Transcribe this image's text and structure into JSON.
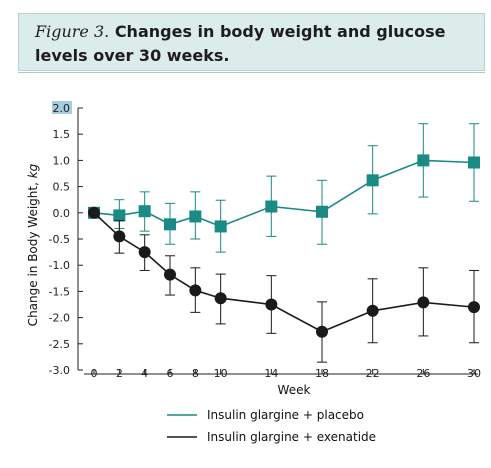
{
  "figure": {
    "label": "Figure 3.",
    "title": "Changes in body weight and glucose levels over 30 weeks."
  },
  "chart_data": {
    "type": "line",
    "xlabel": "Week",
    "ylabel": "Change in Body Weight, kg",
    "ylim": [
      -3.0,
      2.0
    ],
    "x": [
      0,
      2,
      4,
      6,
      8,
      10,
      14,
      18,
      22,
      26,
      30
    ],
    "y_ticks": [
      "2.0",
      "1.5",
      "1.0",
      "0.5",
      "0.0",
      "-0.5",
      "-1.0",
      "-1.5",
      "-2.0",
      "-2.5",
      "-3.0"
    ],
    "y_tick_values": [
      2.0,
      1.5,
      1.0,
      0.5,
      0.0,
      -0.5,
      -1.0,
      -1.5,
      -2.0,
      -2.5,
      -3.0
    ],
    "x_ticks": [
      "0",
      "2",
      "4",
      "6",
      "8",
      "10",
      "14",
      "18",
      "22",
      "26",
      "30"
    ],
    "highlighted_tick": "2.0",
    "series": [
      {
        "name": "Insulin glargine + placebo",
        "color": "#1a8a84",
        "marker": "square",
        "values": [
          0.0,
          -0.05,
          0.03,
          -0.22,
          -0.07,
          -0.26,
          0.12,
          0.02,
          0.62,
          1.0,
          0.96
        ],
        "error_low": [
          -0.05,
          -0.3,
          -0.35,
          -0.6,
          -0.5,
          -0.75,
          -0.45,
          -0.6,
          -0.02,
          0.3,
          0.22
        ],
        "error_high": [
          0.05,
          0.25,
          0.4,
          0.18,
          0.4,
          0.24,
          0.7,
          0.62,
          1.28,
          1.7,
          1.7
        ]
      },
      {
        "name": "Insulin glargine + exenatide",
        "color": "#1a1a1a",
        "marker": "circle",
        "values": [
          0.0,
          -0.45,
          -0.75,
          -1.18,
          -1.48,
          -1.63,
          -1.75,
          -2.27,
          -1.87,
          -1.71,
          -1.8
        ],
        "error_low": [
          -0.05,
          -0.77,
          -1.1,
          -1.57,
          -1.9,
          -2.12,
          -2.3,
          -2.85,
          -2.48,
          -2.35,
          -2.48
        ],
        "error_high": [
          0.05,
          -0.15,
          -0.42,
          -0.82,
          -1.05,
          -1.17,
          -1.2,
          -1.7,
          -1.26,
          -1.05,
          -1.1
        ]
      }
    ],
    "grid": false,
    "legend_position": "bottom"
  },
  "colors": {
    "header_bg": "#dceceb",
    "teal": "#1a8a84",
    "black": "#1a1a1a",
    "highlight": "#a7cbe0"
  }
}
